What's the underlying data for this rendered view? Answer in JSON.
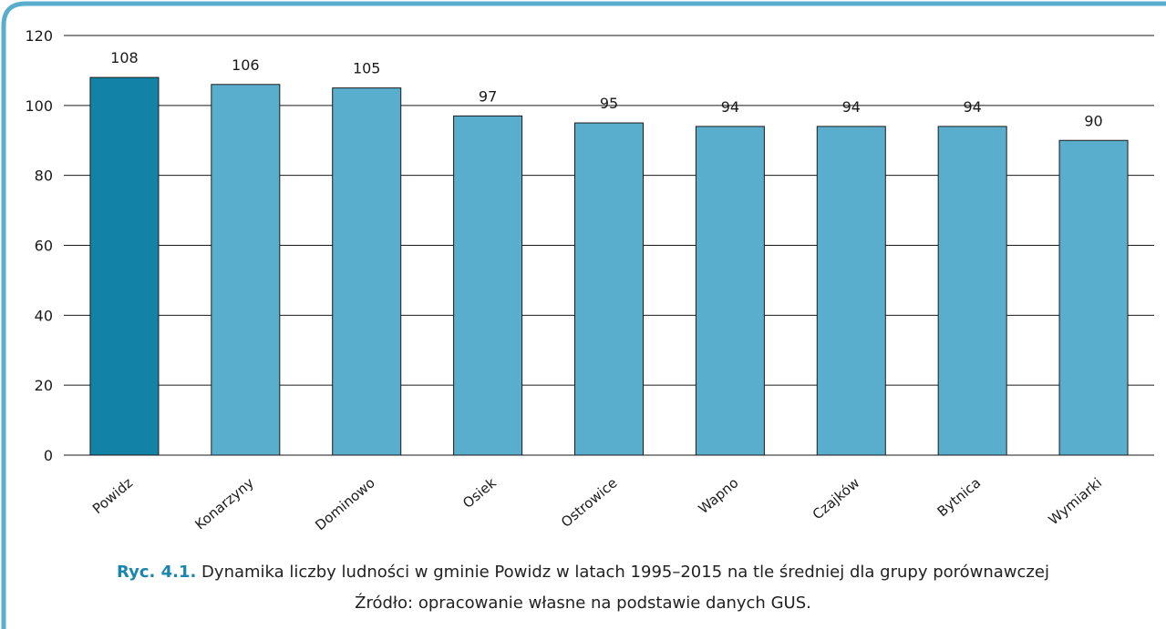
{
  "chart_data": {
    "type": "bar",
    "categories": [
      "Powidz",
      "Konarzyny",
      "Dominowo",
      "Osiek",
      "Ostrowice",
      "Wapno",
      "Czajków",
      "Bytnica",
      "Wymiarki"
    ],
    "values": [
      108,
      106,
      105,
      97,
      95,
      94,
      94,
      94,
      90
    ],
    "ylim": [
      0,
      120
    ],
    "yticks": [
      0,
      20,
      40,
      60,
      80,
      100,
      120
    ],
    "grid": true,
    "highlight_color": "#1282a6",
    "bar_color": "#5aaecd"
  },
  "caption": {
    "label": "Ryc. 4.1.",
    "text": " Dynamika liczby ludności w gminie Powidz w latach 1995–2015 na tle średniej dla grupy porównawczej",
    "source": "Źródło: opracowanie własne na podstawie danych GUS."
  }
}
